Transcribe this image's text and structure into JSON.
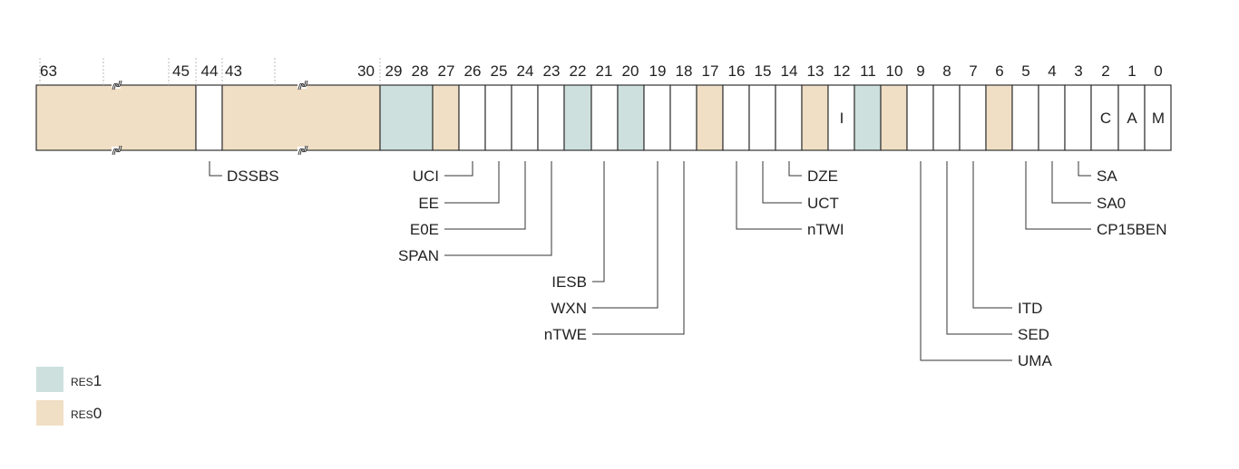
{
  "register": {
    "colors": {
      "res0": "#f0dfc5",
      "res1": "#cde0de",
      "field": "#ffffff",
      "stroke": "#333333"
    },
    "bit_numbers": [
      "63",
      "45",
      "44",
      "43",
      "30",
      "29",
      "28",
      "27",
      "26",
      "25",
      "24",
      "23",
      "22",
      "21",
      "20",
      "19",
      "18",
      "17",
      "16",
      "15",
      "14",
      "13",
      "12",
      "11",
      "10",
      "9",
      "8",
      "7",
      "6",
      "5",
      "4",
      "3",
      "2",
      "1",
      "0"
    ],
    "cells": [
      {
        "id": "b63_45",
        "type": "res0",
        "text": ""
      },
      {
        "id": "b44",
        "type": "field",
        "text": ""
      },
      {
        "id": "b43_30",
        "type": "res0",
        "text": ""
      },
      {
        "id": "b29_28",
        "type": "res1",
        "text": ""
      },
      {
        "id": "b27",
        "type": "res0",
        "text": ""
      },
      {
        "id": "b26",
        "type": "field",
        "text": ""
      },
      {
        "id": "b25",
        "type": "field",
        "text": ""
      },
      {
        "id": "b24",
        "type": "field",
        "text": ""
      },
      {
        "id": "b23",
        "type": "field",
        "text": ""
      },
      {
        "id": "b22",
        "type": "res1",
        "text": ""
      },
      {
        "id": "b21",
        "type": "field",
        "text": ""
      },
      {
        "id": "b20",
        "type": "res1",
        "text": ""
      },
      {
        "id": "b19",
        "type": "field",
        "text": ""
      },
      {
        "id": "b18",
        "type": "field",
        "text": ""
      },
      {
        "id": "b17",
        "type": "res0",
        "text": ""
      },
      {
        "id": "b16",
        "type": "field",
        "text": ""
      },
      {
        "id": "b15",
        "type": "field",
        "text": ""
      },
      {
        "id": "b14",
        "type": "field",
        "text": ""
      },
      {
        "id": "b13",
        "type": "res0",
        "text": ""
      },
      {
        "id": "b12",
        "type": "field",
        "text": "I"
      },
      {
        "id": "b11",
        "type": "res1",
        "text": ""
      },
      {
        "id": "b10",
        "type": "res0",
        "text": ""
      },
      {
        "id": "b9",
        "type": "field",
        "text": ""
      },
      {
        "id": "b8",
        "type": "field",
        "text": ""
      },
      {
        "id": "b7",
        "type": "field",
        "text": ""
      },
      {
        "id": "b6",
        "type": "res0",
        "text": ""
      },
      {
        "id": "b5",
        "type": "field",
        "text": ""
      },
      {
        "id": "b4",
        "type": "field",
        "text": ""
      },
      {
        "id": "b3",
        "type": "field",
        "text": ""
      },
      {
        "id": "b2",
        "type": "field",
        "text": "C"
      },
      {
        "id": "b1",
        "type": "field",
        "text": "A"
      },
      {
        "id": "b0",
        "type": "field",
        "text": "M"
      }
    ],
    "field_labels": [
      {
        "bit": "44",
        "name": "DSSBS"
      },
      {
        "bit": "26",
        "name": "UCI"
      },
      {
        "bit": "25",
        "name": "EE"
      },
      {
        "bit": "24",
        "name": "E0E"
      },
      {
        "bit": "23",
        "name": "SPAN"
      },
      {
        "bit": "21",
        "name": "IESB"
      },
      {
        "bit": "19",
        "name": "WXN"
      },
      {
        "bit": "18",
        "name": "nTWE"
      },
      {
        "bit": "14",
        "name": "DZE"
      },
      {
        "bit": "15",
        "name": "UCT"
      },
      {
        "bit": "16",
        "name": "nTWI"
      },
      {
        "bit": "7",
        "name": "ITD"
      },
      {
        "bit": "8",
        "name": "SED"
      },
      {
        "bit": "9",
        "name": "UMA"
      },
      {
        "bit": "3",
        "name": "SA"
      },
      {
        "bit": "4",
        "name": "SA0"
      },
      {
        "bit": "5",
        "name": "CP15BEN"
      }
    ]
  },
  "legend": [
    {
      "type": "res1",
      "prefix": "RES",
      "suffix": "1"
    },
    {
      "type": "res0",
      "prefix": "RES",
      "suffix": "0"
    }
  ]
}
